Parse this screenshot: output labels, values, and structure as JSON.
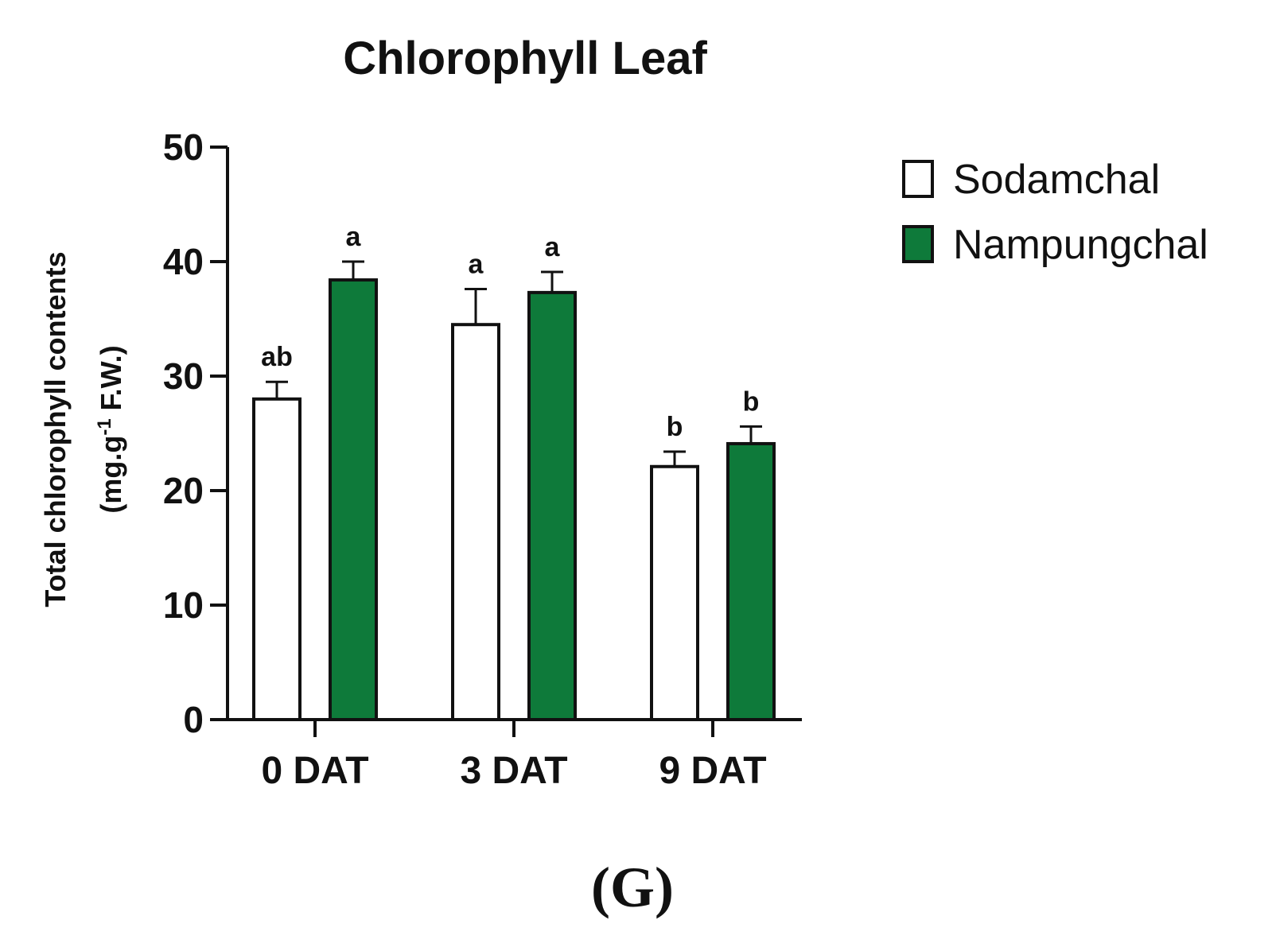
{
  "chart_data": {
    "type": "bar",
    "title": "Chlorophyll Leaf",
    "ylabel_line1": "Total chlorophyll contents",
    "ylabel_line2_pre": "(mg.g",
    "ylabel_line2_sup": "-1",
    "ylabel_line2_post": " F.W.)",
    "xlabel": "",
    "ylim": [
      0,
      50
    ],
    "yticks": [
      "0",
      "10",
      "20",
      "30",
      "40",
      "50"
    ],
    "categories": [
      "0 DAT",
      "3 DAT",
      "9 DAT"
    ],
    "series": [
      {
        "name": "Sodamchal",
        "color": "#ffffff",
        "values": [
          28.0,
          34.5,
          22.1
        ],
        "errors": [
          1.5,
          3.1,
          1.3
        ],
        "labels": [
          "ab",
          "a",
          "b"
        ]
      },
      {
        "name": "Nampungchal",
        "color": "#0e7a3a",
        "values": [
          38.4,
          37.3,
          24.1
        ],
        "errors": [
          1.6,
          1.8,
          1.5
        ],
        "labels": [
          "a",
          "a",
          "b"
        ]
      }
    ],
    "legend_position": "top-right",
    "grid": false
  },
  "panel_label": "(G)"
}
